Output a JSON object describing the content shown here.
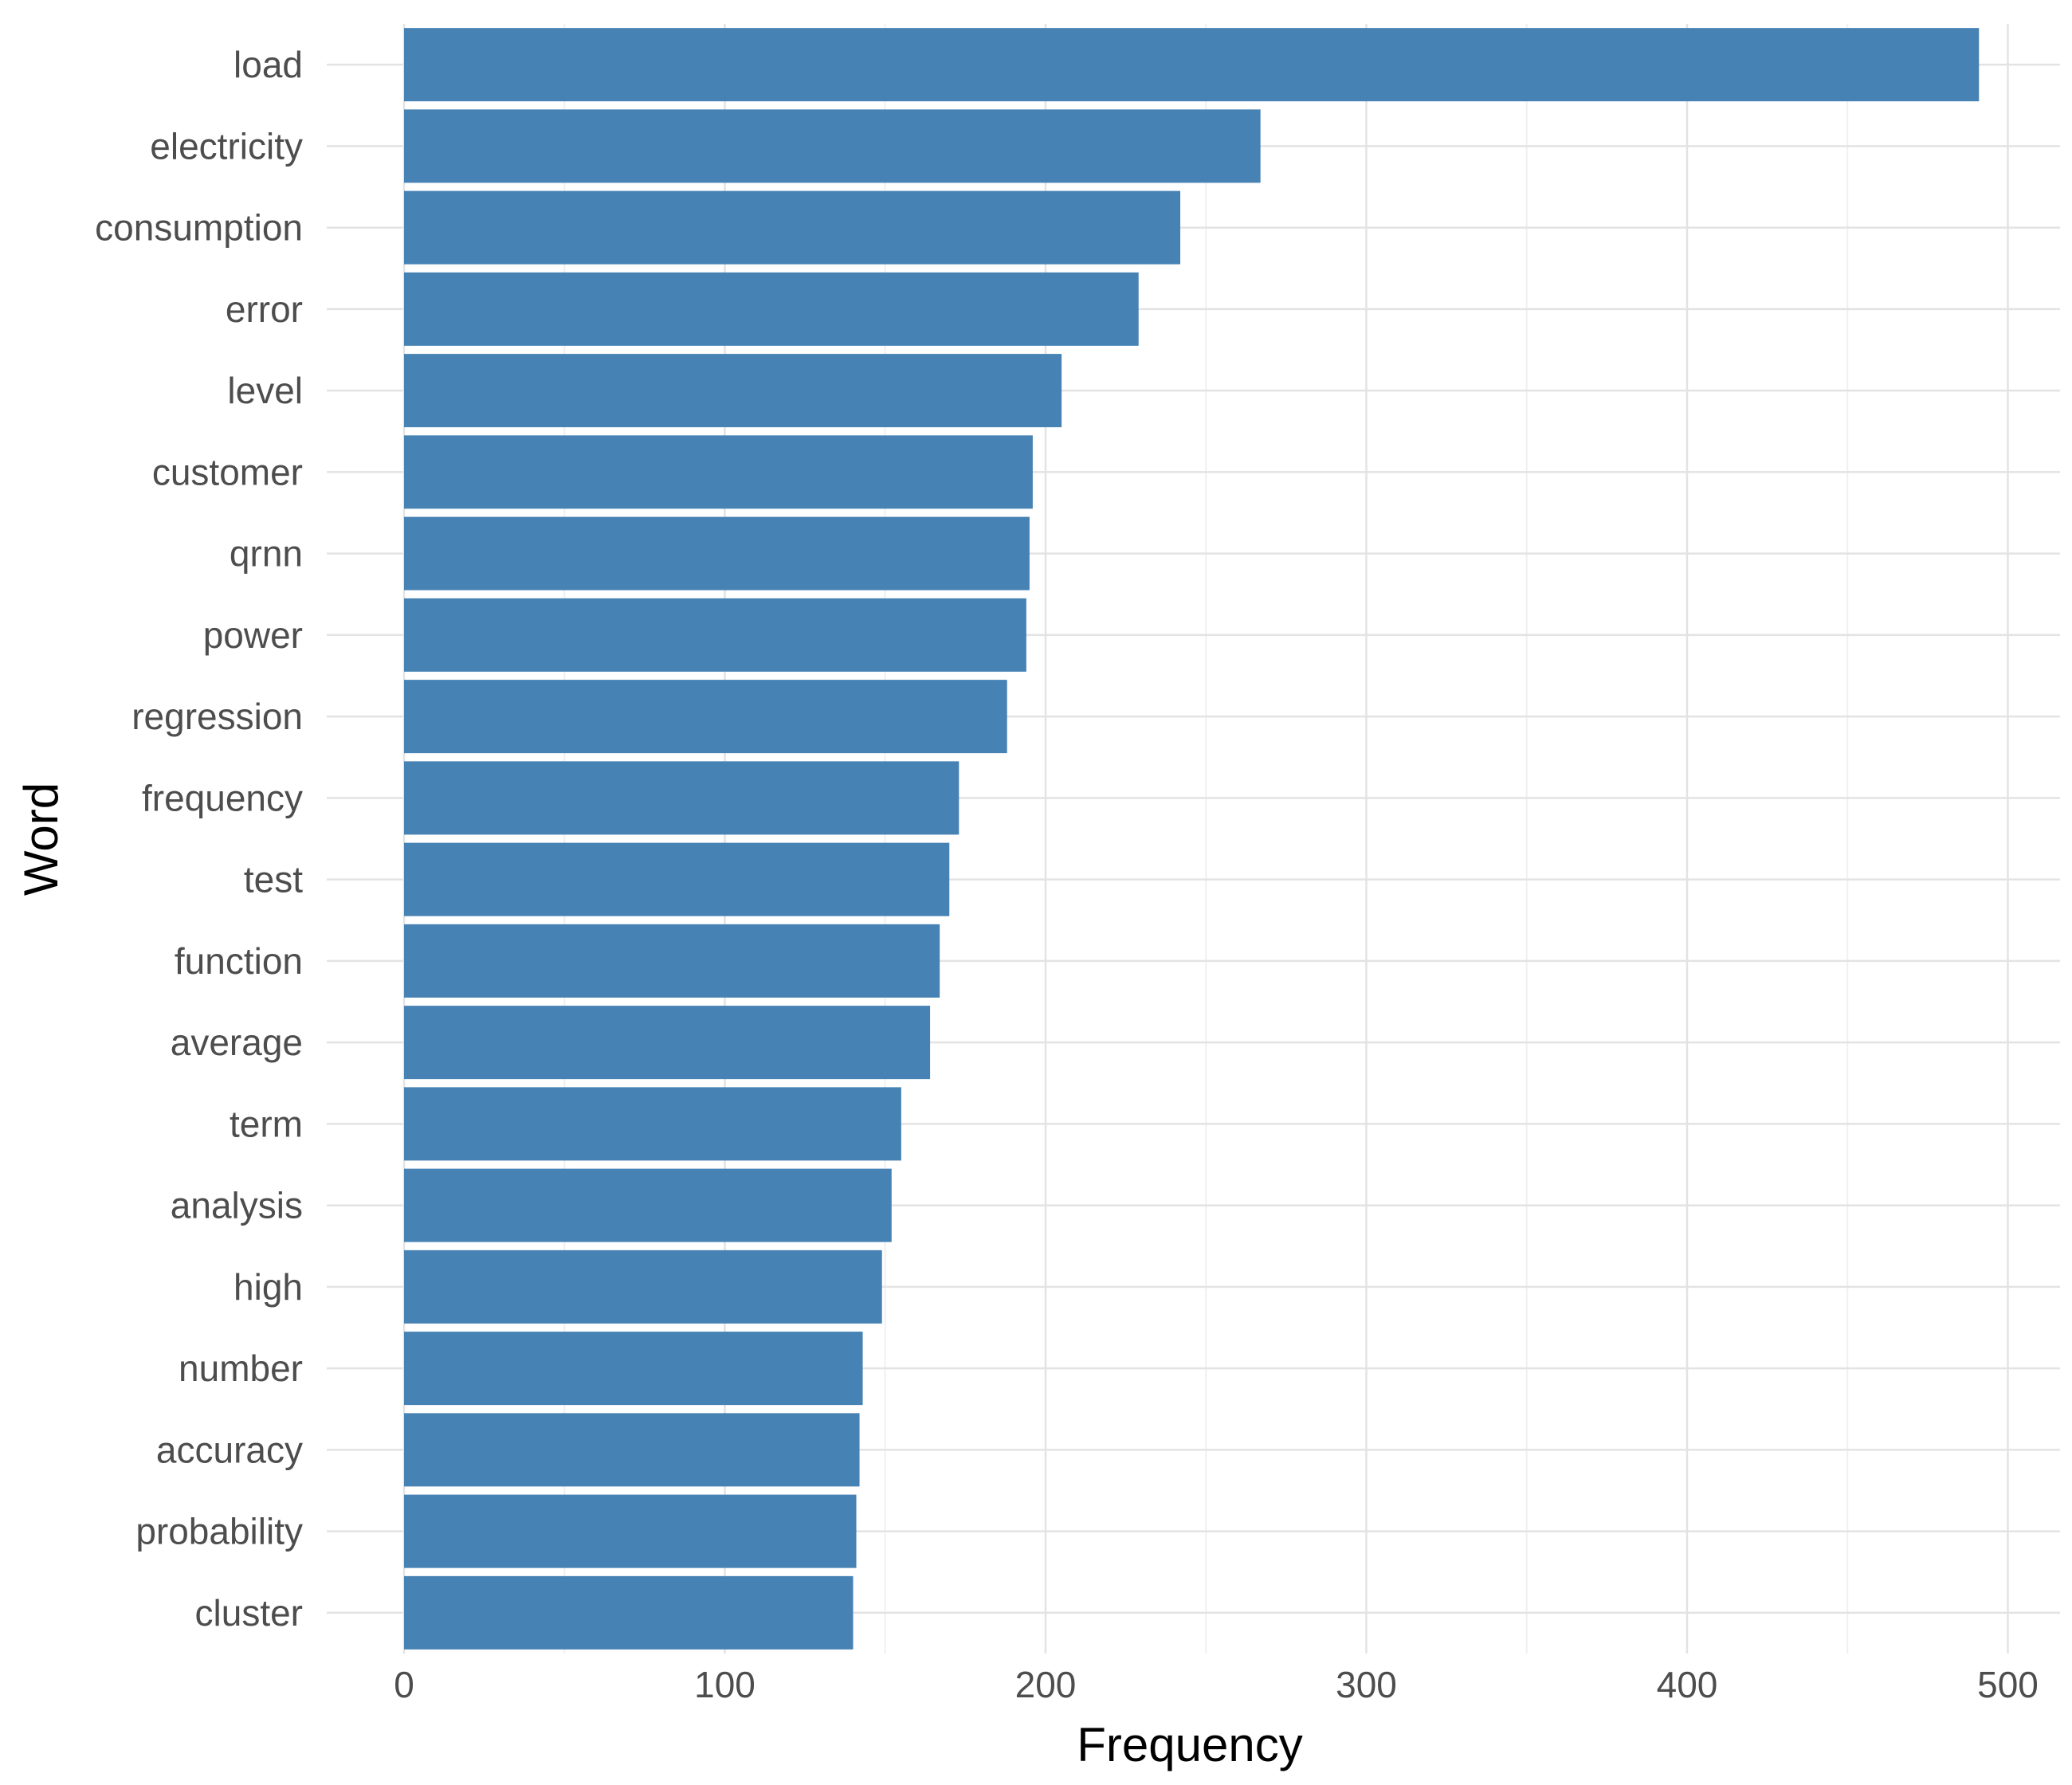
{
  "chart_data": {
    "type": "bar",
    "orientation": "horizontal",
    "xlabel": "Frequency",
    "ylabel": "Word",
    "xlim": [
      0,
      500
    ],
    "x_ticks": [
      0,
      100,
      200,
      300,
      400,
      500
    ],
    "grid": true,
    "bar_color": "#4682B4",
    "categories": [
      "load",
      "electricity",
      "consumption",
      "error",
      "level",
      "customer",
      "qrnn",
      "power",
      "regression",
      "frequency",
      "test",
      "function",
      "average",
      "term",
      "analysis",
      "high",
      "number",
      "accuracy",
      "probability",
      "cluster"
    ],
    "values": [
      491,
      267,
      242,
      229,
      205,
      196,
      195,
      194,
      188,
      173,
      170,
      167,
      164,
      155,
      152,
      149,
      143,
      142,
      141,
      140
    ]
  }
}
